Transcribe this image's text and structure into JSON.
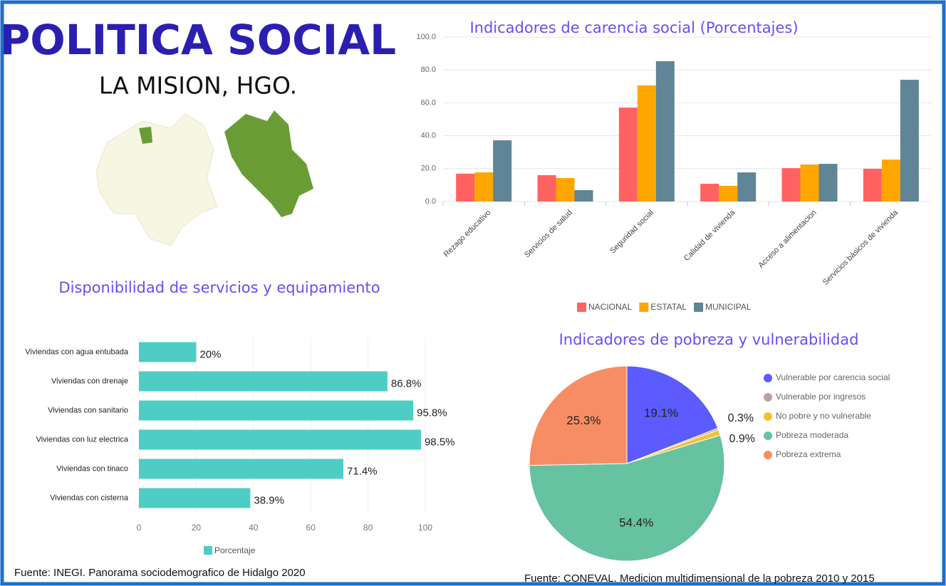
{
  "header": {
    "title": "POLITICA SOCIAL",
    "subtitle": "LA MISION, HGO."
  },
  "chart_data": [
    {
      "type": "bar",
      "title": "Indicadores de carencia social (Porcentajes)",
      "categories": [
        "Rezago educativo",
        "Servicios de salud",
        "Seguridad social",
        "Calidad de vivienda",
        "Acceso a alimentacion",
        "Servicios básicos de vivienda"
      ],
      "series": [
        {
          "name": "NACIONAL",
          "color": "#ff6361",
          "values": [
            16.9,
            16.0,
            57.1,
            10.8,
            20.3,
            19.9
          ]
        },
        {
          "name": "ESTATAL",
          "color": "#ffa600",
          "values": [
            17.7,
            14.3,
            70.6,
            9.5,
            22.5,
            25.5
          ]
        },
        {
          "name": "MUNICIPAL",
          "color": "#5f8596",
          "values": [
            37.2,
            6.9,
            85.3,
            17.7,
            22.9,
            74.0
          ]
        }
      ],
      "ylim": [
        0,
        100
      ],
      "yticks": [
        {
          "value": 0,
          "label": "0.0"
        },
        {
          "value": 20,
          "label": "20.0"
        },
        {
          "value": 40,
          "label": "40.0"
        },
        {
          "value": 60,
          "label": "60.0"
        },
        {
          "value": 80,
          "label": "80.0"
        },
        {
          "value": 100,
          "label": "100.0"
        }
      ],
      "grid": true,
      "legend": "bottom"
    },
    {
      "type": "hbar",
      "title": "Disponibilidad de servicios y equipamiento",
      "categories": [
        "Viviendas con agua entubada",
        "Viviendas con drenaje",
        "Viviendas con sanitario",
        "Viviendas con luz electrica",
        "Viviendas con tinaco",
        "Viviendas con cisterna"
      ],
      "series": [
        {
          "name": "Porcentaje",
          "color": "#4ecdc4",
          "values": [
            20,
            86.8,
            95.8,
            98.5,
            71.4,
            38.9
          ],
          "value_labels": [
            "20%",
            "86.8%",
            "95.8%",
            "98.5%",
            "71.4%",
            "38.9%"
          ]
        }
      ],
      "xlim": [
        0,
        100
      ],
      "xticks": [
        0,
        20,
        40,
        60,
        80,
        100
      ],
      "legend": "bottom",
      "source": "Fuente: INEGI. Panorama sociodemografico de Hidalgo 2020"
    },
    {
      "type": "pie",
      "title": "Indicadores de pobreza y vulnerabilidad",
      "categories": [
        "Vulnerable por carencia social",
        "Vulnerable por ingresos",
        "No pobre y no vulnerable",
        "Pobreza moderada",
        "Pobreza extrema"
      ],
      "values": [
        19.1,
        0.3,
        0.9,
        54.4,
        25.3
      ],
      "value_labels": [
        "19.1%",
        "0.3%",
        "0.9%",
        "54.4%",
        "25.3%"
      ],
      "colors": [
        "#5b5bff",
        "#b8a1a6",
        "#f2c232",
        "#66c2a0",
        "#f78d64"
      ],
      "legend": "right",
      "source": "Fuente: CONEVAL. Medicion multidimensional de la pobreza 2010 y 2015"
    }
  ]
}
